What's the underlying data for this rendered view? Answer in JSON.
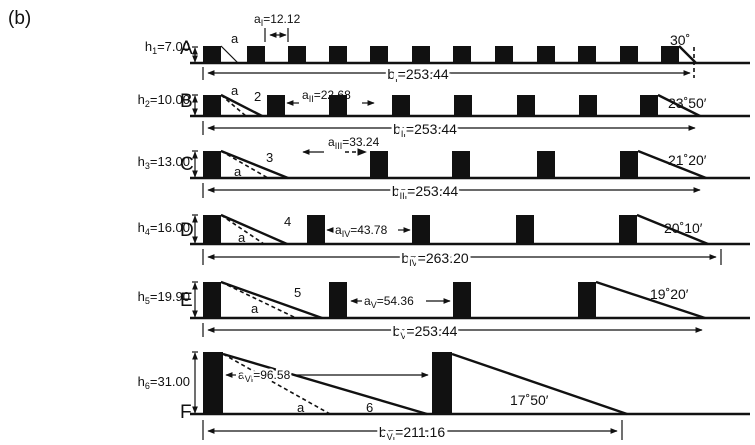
{
  "panel_label": "(b)",
  "rows": [
    {
      "key": "A",
      "h_label": "h",
      "h_sub": "1",
      "h_value": "=7.00",
      "a_label": "a",
      "a_sub": "I",
      "a_value": "=12.12",
      "b_label": "b",
      "b_sub": "I",
      "b_value": "=253.44",
      "angle": "30˚",
      "curve_no": "",
      "marker": "a",
      "extra_a": ""
    },
    {
      "key": "B",
      "h_label": "h",
      "h_sub": "2",
      "h_value": "=10.00",
      "a_label": "a",
      "a_sub": "II",
      "a_value": "=22.68",
      "b_label": "b",
      "b_sub": "II",
      "b_value": "=253.44",
      "angle": "23˚50′",
      "curve_no": "2",
      "marker": "a",
      "extra_a": ""
    },
    {
      "key": "C",
      "h_label": "h",
      "h_sub": "3",
      "h_value": "=13.00",
      "a_label": "a",
      "a_sub": "III",
      "a_value": "=33.24",
      "b_label": "b",
      "b_sub": "III",
      "b_value": "=253.44",
      "angle": "21˚20′",
      "curve_no": "3",
      "marker": "a",
      "extra_a": ""
    },
    {
      "key": "D",
      "h_label": "h",
      "h_sub": "4",
      "h_value": "=16.00",
      "a_label": "a",
      "a_sub": "IV",
      "a_value": "=43.78",
      "b_label": "b",
      "b_sub": "IV",
      "b_value": "=263.20",
      "angle": "20˚10′",
      "curve_no": "4",
      "marker": "a",
      "extra_a": ""
    },
    {
      "key": "E",
      "h_label": "h",
      "h_sub": "5",
      "h_value": "=19.90",
      "a_label": "a",
      "a_sub": "V",
      "a_value": "=54.36",
      "b_label": "b",
      "b_sub": "V",
      "b_value": "=253.44",
      "angle": "19˚20′",
      "curve_no": "5",
      "marker": "a",
      "extra_a": ""
    },
    {
      "key": "F",
      "h_label": "h",
      "h_sub": "6",
      "h_value": "=31.00",
      "a_label": "a",
      "a_sub": "VI",
      "a_value": "=96.58",
      "b_label": "b",
      "b_sub": "VI",
      "b_value": "=211.16",
      "angle": "17˚50′",
      "curve_no": "6",
      "marker": "a",
      "extra_a": ""
    }
  ]
}
